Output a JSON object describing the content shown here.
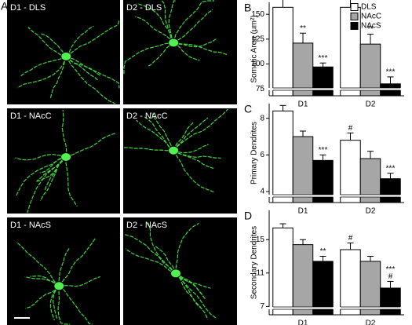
{
  "images": {
    "panel": "A",
    "labels": [
      "D1 - DLS",
      "D2 - DLS",
      "D1 - NAcC",
      "D2 - NAcC",
      "D1 - NAcS",
      "D2 - NAcS"
    ]
  },
  "chart_data": [
    {
      "type": "bar",
      "panel": "B",
      "ylabel": "Somatic Area (µm²)",
      "categories": [
        "D1",
        "D2"
      ],
      "ylim": [
        68,
        162
      ],
      "yticks": [
        75,
        100,
        125,
        150
      ],
      "legend": "top-right",
      "series": [
        {
          "name": "DLS",
          "color": "#ffffff",
          "values": [
            157,
            157
          ],
          "errors": [
            10,
            9
          ]
        },
        {
          "name": "NAcC",
          "color": "#a6a6a6",
          "values": [
            121,
            120
          ],
          "errors": [
            10,
            10
          ]
        },
        {
          "name": "NAcS",
          "color": "#000000",
          "values": [
            97,
            80
          ],
          "errors": [
            4,
            7
          ]
        }
      ],
      "annotations": [
        {
          "series": 1,
          "category": 0,
          "text": "**"
        },
        {
          "series": 2,
          "category": 0,
          "text": "***"
        },
        {
          "series": 1,
          "category": 1,
          "text": "**"
        },
        {
          "series": 2,
          "category": 1,
          "text": "***"
        }
      ]
    },
    {
      "type": "bar",
      "panel": "C",
      "ylabel": "Primary Dendrites",
      "categories": [
        "D1",
        "D2"
      ],
      "ylim": [
        3.4,
        8.8
      ],
      "yticks": [
        4,
        6,
        8
      ],
      "series": [
        {
          "color": "#ffffff",
          "values": [
            8.4,
            6.8
          ],
          "errors": [
            0.3,
            0.4
          ]
        },
        {
          "color": "#a6a6a6",
          "values": [
            7.0,
            5.8
          ],
          "errors": [
            0.3,
            0.4
          ]
        },
        {
          "color": "#000000",
          "values": [
            5.7,
            4.7
          ],
          "errors": [
            0.3,
            0.3
          ]
        }
      ],
      "annotations": [
        {
          "series": 2,
          "category": 0,
          "text": "***"
        },
        {
          "series": 0,
          "category": 1,
          "text": "#"
        },
        {
          "series": 2,
          "category": 1,
          "text": "***"
        }
      ]
    },
    {
      "type": "bar",
      "panel": "D",
      "ylabel": "Secondary Dendrites",
      "categories": [
        "D1",
        "D2"
      ],
      "ylim": [
        6,
        18.5
      ],
      "yticks": [
        7,
        11,
        15
      ],
      "series": [
        {
          "color": "#ffffff",
          "values": [
            16.4,
            13.8
          ],
          "errors": [
            0.5,
            0.8
          ]
        },
        {
          "color": "#a6a6a6",
          "values": [
            14.4,
            12.4
          ],
          "errors": [
            0.6,
            0.6
          ]
        },
        {
          "color": "#000000",
          "values": [
            12.4,
            9.2
          ],
          "errors": [
            0.6,
            0.8
          ]
        }
      ],
      "annotations": [
        {
          "series": 2,
          "category": 0,
          "text": "**"
        },
        {
          "series": 0,
          "category": 1,
          "text": "#"
        },
        {
          "series": 2,
          "category": 1,
          "text": "#"
        },
        {
          "series": 2,
          "category": 1,
          "text": "***"
        }
      ]
    }
  ]
}
